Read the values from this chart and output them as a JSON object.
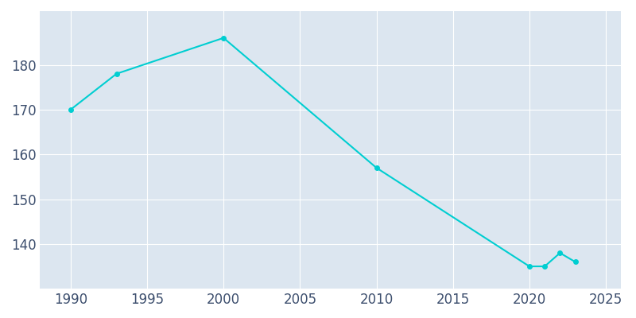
{
  "years": [
    1990,
    1993,
    2000,
    2010,
    2020,
    2021,
    2022,
    2023
  ],
  "population": [
    170,
    178,
    186,
    157,
    135,
    135,
    138,
    136
  ],
  "line_color": "#00CED1",
  "plot_bg_color": "#dce6f0",
  "figure_bg_color": "#ffffff",
  "grid_color": "#ffffff",
  "xlim": [
    1988,
    2026
  ],
  "ylim": [
    130,
    192
  ],
  "xticks": [
    1990,
    1995,
    2000,
    2005,
    2010,
    2015,
    2020,
    2025
  ],
  "yticks": [
    140,
    150,
    160,
    170,
    180
  ],
  "tick_color": "#3d4f6e",
  "linewidth": 1.5,
  "markersize": 4
}
